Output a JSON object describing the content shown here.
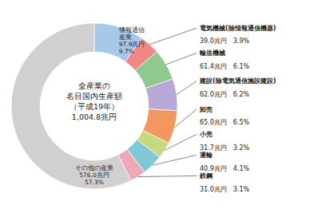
{
  "chart_data": {
    "type": "pie",
    "title": "全産業の\n名目国内生産額\n（平成19年）\n1,004.8兆円",
    "categories": [
      "情報通信\n産業",
      "電気機械(除情報通信機器)",
      "輸送機械",
      "建設(除電気通信施設建設)",
      "卸売",
      "小売",
      "運輸",
      "鉄鋼",
      "その他の産業"
    ],
    "values": [
      9.7,
      3.9,
      6.1,
      6.2,
      6.5,
      3.2,
      4.1,
      3.1,
      57.3
    ],
    "value_labels": [
      "97.9兆円\n9.7%",
      "39.0兆円　3.9%",
      "61.4兆円　6.1%",
      "62.0兆円　6.2%",
      "65.0兆円　6.5%",
      "31.7兆円　3.2%",
      "40.9兆円　4.1%",
      "31.0兆円　3.1%",
      "576.0兆円\n57.3%"
    ],
    "colors": [
      "#a8c8e8",
      "#f08888",
      "#90c890",
      "#b8a8d8",
      "#f09860",
      "#c8d880",
      "#80c8d8",
      "#f0a8b8",
      "#d0d0d0"
    ],
    "data_labels": true
  }
}
